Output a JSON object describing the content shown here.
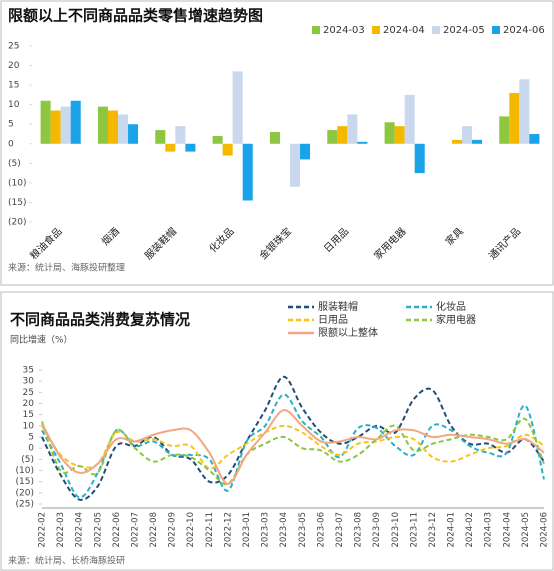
{
  "chart_data": [
    {
      "type": "bar",
      "title": "限额以上不同商品品类零售增速趋势图",
      "source": "来源：统计局、海豚投研整理",
      "categories": [
        "粮油食品",
        "烟酒",
        "服装鞋帽",
        "化妆品",
        "金银珠宝",
        "日用品",
        "家用电器",
        "家具",
        "通讯产品"
      ],
      "series": [
        {
          "name": "2024-03",
          "color": "#8dc63f",
          "values": [
            11,
            9.5,
            3.5,
            2,
            3,
            3.5,
            5.5,
            0,
            7
          ]
        },
        {
          "name": "2024-04",
          "color": "#f5b800",
          "values": [
            8.5,
            8.5,
            -2,
            -3,
            0,
            4.5,
            4.5,
            1,
            13
          ]
        },
        {
          "name": "2024-05",
          "color": "#c9d8ec",
          "values": [
            9.5,
            7.5,
            4.5,
            18.5,
            -11,
            7.5,
            12.5,
            4.5,
            16.5
          ]
        },
        {
          "name": "2024-06",
          "color": "#1aa3e8",
          "values": [
            11,
            5,
            -2,
            -14.5,
            -4,
            0.5,
            -7.5,
            1,
            2.5
          ]
        }
      ],
      "ylim": [
        -20,
        25
      ],
      "yticks": [
        25,
        20,
        15,
        10,
        5,
        0,
        {
          "value": -5,
          "label": "(5)"
        },
        {
          "value": -10,
          "label": "(10)"
        },
        {
          "value": -15,
          "label": "(15)"
        },
        {
          "value": -20,
          "label": "(20)"
        }
      ]
    },
    {
      "type": "line",
      "title": "不同商品品类消费复苏情况",
      "y_label": "同比增速（%）",
      "source": "来源：统计局、长桥海豚投研",
      "categories": [
        "2022-02",
        "2022-03",
        "2022-04",
        "2022-05",
        "2022-06",
        "2022-07",
        "2022-08",
        "2022-09",
        "2022-10",
        "2022-11",
        "2022-12",
        "2023-01",
        "2023-03",
        "2023-04",
        "2023-05",
        "2023-06",
        "2023-07",
        "2023-08",
        "2023-09",
        "2023-10",
        "2023-11",
        "2023-12",
        "2024-01",
        "2024-02",
        "2024-03",
        "2024-04",
        "2024-05",
        "2024-06"
      ],
      "series": [
        {
          "name": "服装鞋帽",
          "color": "#1f4e79",
          "dash": true,
          "values": [
            5,
            -12,
            -23,
            -17,
            1,
            1,
            5,
            -3,
            -5,
            -15,
            -12,
            3,
            17,
            32,
            18,
            7,
            2,
            5,
            10,
            7,
            22,
            26,
            10,
            2,
            2,
            -2,
            4,
            -6
          ]
        },
        {
          "name": "化妆品",
          "color": "#2ab0c5",
          "dash": true,
          "values": [
            8,
            -7,
            -22,
            -11,
            8,
            1,
            3,
            -3,
            -3,
            -5,
            -19,
            3,
            10,
            24,
            12,
            5,
            -4,
            9,
            9,
            1,
            -3,
            10,
            8,
            1,
            -2,
            -2,
            19,
            -14
          ]
        },
        {
          "name": "日用品",
          "color": "#f5c518",
          "dash": true,
          "values": [
            10,
            -3,
            -8,
            -7,
            7,
            3,
            4,
            1,
            1,
            -9,
            -3,
            2,
            7,
            10,
            7,
            1,
            -3,
            2,
            3,
            5,
            4,
            -4,
            -6,
            -3,
            0,
            1,
            6,
            1
          ]
        },
        {
          "name": "家用电器",
          "color": "#8dc63f",
          "dash": true,
          "values": [
            12,
            -10,
            -8,
            -11,
            8,
            0,
            -6,
            -3,
            -4,
            -10,
            -16,
            -3,
            2,
            5,
            0,
            -1,
            -6,
            -3,
            4,
            10,
            -1,
            2,
            4,
            6,
            5,
            4,
            13,
            -7
          ]
        },
        {
          "name": "限额以上整体",
          "color": "#f4a582",
          "dash": false,
          "values": [
            11,
            -4,
            -11,
            -7,
            4,
            3,
            6,
            8,
            8,
            -2,
            -16,
            -3,
            7,
            17,
            10,
            3,
            3,
            5,
            4,
            8,
            8,
            5,
            6,
            5,
            4,
            2,
            4,
            -2
          ]
        }
      ],
      "ylim": [
        -25,
        35
      ],
      "yticks": [
        35,
        30,
        25,
        20,
        15,
        10,
        5,
        0,
        {
          "value": -5,
          "label": "(5)"
        },
        {
          "value": -10,
          "label": "(10)"
        },
        {
          "value": -15,
          "label": "(15)"
        },
        {
          "value": -20,
          "label": "(20)"
        },
        {
          "value": -25,
          "label": "(25)"
        }
      ]
    }
  ]
}
